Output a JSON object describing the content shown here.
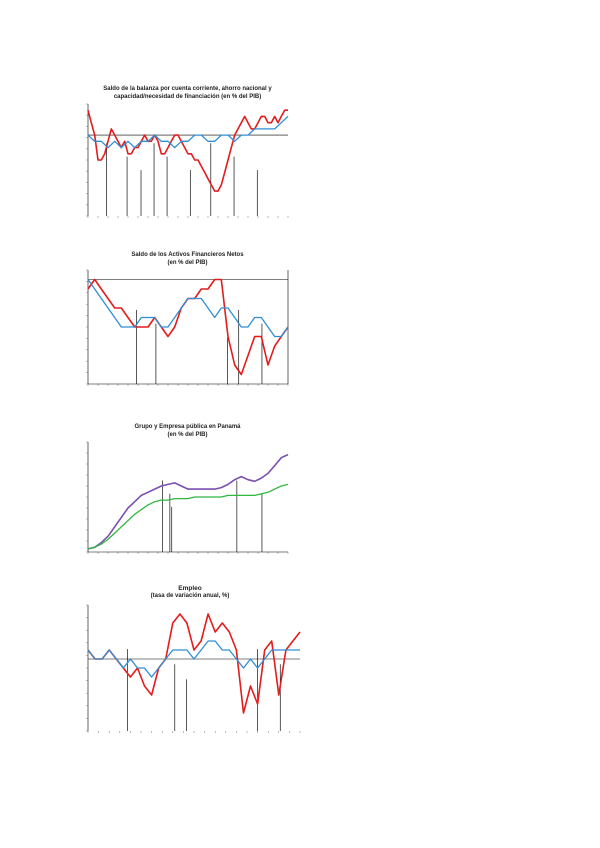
{
  "colors": {
    "red": "#e31c1c",
    "blue": "#2f8fd6",
    "purple": "#7a4fb0",
    "green": "#2fb83f",
    "axis": "#000000"
  },
  "charts": [
    {
      "title_lines": [
        "Saldo de la balanza por cuenta corriente, ahorro nacional y",
        "capacidad/necesidad de financiación (en % del PIB)"
      ],
      "chart_data": {
        "type": "line",
        "title": "Saldo de la balanza por cuenta corriente, ahorro nacional y capacidad/necesidad de financiación (en % del PIB)",
        "ylim": [
          -13,
          5
        ],
        "xlim": [
          0,
          60
        ],
        "series": [
          {
            "name": "",
            "color_key": "red",
            "x": [
              0,
              1,
              2,
              3,
              4,
              5,
              6,
              7,
              8,
              9,
              10,
              11,
              12,
              13,
              14,
              15,
              16,
              17,
              18,
              19,
              20,
              21,
              22,
              23,
              24,
              25,
              26,
              27,
              28,
              29,
              30,
              31,
              32,
              33,
              34,
              35,
              36,
              37,
              38,
              39,
              40,
              41,
              42,
              43,
              44,
              45,
              46,
              47,
              48,
              49,
              50,
              51,
              52,
              53,
              54,
              55,
              56,
              57,
              58,
              59,
              60
            ],
            "values": [
              4,
              2,
              0,
              -4,
              -4,
              -3,
              -1,
              1,
              0,
              -1,
              -2,
              -1,
              -3,
              -3,
              -2,
              -2,
              -1,
              0,
              -1,
              -1,
              0,
              -1,
              -3,
              -3,
              -2,
              -1,
              0,
              0,
              -1,
              -2,
              -3,
              -3,
              -4,
              -4,
              -5,
              -6,
              -7,
              -8,
              -9,
              -9,
              -8,
              -6,
              -4,
              -2,
              0,
              1,
              2,
              3,
              2,
              1,
              1,
              2,
              3,
              3,
              2,
              2,
              3,
              2,
              3,
              4,
              4
            ]
          },
          {
            "name": "",
            "color_key": "blue",
            "x": [
              0,
              2,
              4,
              6,
              8,
              10,
              12,
              14,
              16,
              18,
              20,
              22,
              24,
              26,
              28,
              30,
              32,
              34,
              36,
              38,
              40,
              42,
              44,
              46,
              48,
              50,
              52,
              54,
              56,
              58,
              60
            ],
            "values": [
              0,
              -1,
              -1,
              -2,
              -1,
              -2,
              -1,
              -2,
              -1,
              -1,
              0,
              -1,
              -1,
              -2,
              -1,
              -1,
              0,
              0,
              -1,
              -1,
              0,
              0,
              -1,
              0,
              0,
              1,
              1,
              1,
              1,
              2,
              3
            ]
          }
        ],
        "annotations": []
      }
    },
    {
      "title_lines": [
        "Saldo de los Activos Financieros Netos",
        "(en % del PIB)"
      ],
      "chart_data": {
        "type": "line",
        "title": "Saldo de los Activos Financieros Netos (en % del PIB)",
        "ylim": [
          -9,
          3
        ],
        "xlim": [
          0,
          60
        ],
        "series": [
          {
            "name": "",
            "color_key": "red",
            "x": [
              0,
              2,
              4,
              6,
              8,
              10,
              12,
              14,
              16,
              18,
              20,
              22,
              24,
              26,
              28,
              30,
              32,
              34,
              36,
              38,
              40,
              42,
              44,
              46,
              48,
              50,
              52,
              54,
              56,
              58,
              60
            ],
            "values": [
              1,
              2,
              1,
              0,
              -1,
              -1,
              -2,
              -3,
              -3,
              -3,
              -2,
              -3,
              -4,
              -3,
              -1,
              0,
              0,
              1,
              1,
              2,
              2,
              -4,
              -7,
              -8,
              -6,
              -4,
              -4,
              -7,
              -5,
              -4,
              -3
            ]
          },
          {
            "name": "",
            "color_key": "blue",
            "x": [
              0,
              2,
              4,
              6,
              8,
              10,
              12,
              14,
              16,
              18,
              20,
              22,
              24,
              26,
              28,
              30,
              32,
              34,
              36,
              38,
              40,
              42,
              44,
              46,
              48,
              50,
              52,
              54,
              56,
              58,
              60
            ],
            "values": [
              2,
              1,
              0,
              -1,
              -2,
              -3,
              -3,
              -3,
              -2,
              -2,
              -2,
              -3,
              -3,
              -2,
              -1,
              0,
              0,
              0,
              -1,
              -2,
              -1,
              -1,
              -2,
              -3,
              -3,
              -2,
              -2,
              -3,
              -4,
              -4,
              -3
            ]
          }
        ],
        "annotations": []
      }
    },
    {
      "title_lines": [
        "Grupo y Empresa pública en Panamá",
        "(en % del PIB)"
      ],
      "chart_data": {
        "type": "line",
        "title": "Grupo y Empresa pública en Panamá (en % del PIB)",
        "ylim": [
          0,
          70
        ],
        "xlim": [
          0,
          60
        ],
        "series": [
          {
            "name": "",
            "color_key": "purple",
            "x": [
              0,
              2,
              4,
              6,
              8,
              10,
              12,
              14,
              16,
              18,
              20,
              22,
              24,
              26,
              28,
              30,
              32,
              34,
              36,
              38,
              40,
              42,
              44,
              46,
              48,
              50,
              52,
              54,
              56,
              58,
              60
            ],
            "values": [
              2,
              3,
              6,
              10,
              16,
              22,
              28,
              32,
              36,
              38,
              40,
              42,
              43,
              44,
              42,
              40,
              40,
              40,
              40,
              40,
              41,
              43,
              46,
              48,
              46,
              45,
              47,
              50,
              55,
              60,
              62
            ]
          },
          {
            "name": "",
            "color_key": "green",
            "x": [
              0,
              2,
              4,
              6,
              8,
              10,
              12,
              14,
              16,
              18,
              20,
              22,
              24,
              26,
              28,
              30,
              32,
              34,
              36,
              38,
              40,
              42,
              44,
              46,
              48,
              50,
              52,
              54,
              56,
              58,
              60
            ],
            "values": [
              2,
              3,
              5,
              8,
              12,
              16,
              20,
              24,
              27,
              30,
              32,
              33,
              33,
              34,
              34,
              34,
              35,
              35,
              35,
              35,
              35,
              36,
              36,
              36,
              36,
              36,
              37,
              38,
              40,
              42,
              43
            ]
          }
        ],
        "annotations": []
      }
    },
    {
      "title_lines": [
        "Empleo",
        "(tasa de variación anual, %)"
      ],
      "chart_data": {
        "type": "line",
        "title": "Empleo (tasa de variación anual, %)",
        "ylim": [
          -8,
          6
        ],
        "xlim": [
          0,
          60
        ],
        "series": [
          {
            "name": "",
            "color_key": "red",
            "x": [
              0,
              2,
              4,
              6,
              8,
              10,
              12,
              14,
              16,
              18,
              20,
              22,
              24,
              26,
              28,
              30,
              32,
              34,
              36,
              38,
              40,
              42,
              44,
              46,
              48,
              50,
              52,
              54,
              56,
              58,
              60
            ],
            "values": [
              1,
              0,
              0,
              1,
              0,
              -1,
              -2,
              -1,
              -3,
              -4,
              -1,
              0,
              4,
              5,
              4,
              1,
              2,
              5,
              3,
              4,
              3,
              1,
              -6,
              -3,
              -5,
              1,
              2,
              -4,
              1,
              2,
              3
            ]
          },
          {
            "name": "",
            "color_key": "blue",
            "x": [
              0,
              2,
              4,
              6,
              8,
              10,
              12,
              14,
              16,
              18,
              20,
              22,
              24,
              26,
              28,
              30,
              32,
              34,
              36,
              38,
              40,
              42,
              44,
              46,
              48,
              50,
              52,
              54,
              56,
              58,
              60
            ],
            "values": [
              1,
              0,
              0,
              1,
              0,
              -1,
              0,
              -1,
              -1,
              -2,
              -1,
              0,
              1,
              1,
              1,
              0,
              1,
              2,
              2,
              1,
              1,
              0,
              -1,
              0,
              -1,
              0,
              1,
              1,
              1,
              1,
              1
            ]
          }
        ],
        "annotations": []
      }
    }
  ]
}
